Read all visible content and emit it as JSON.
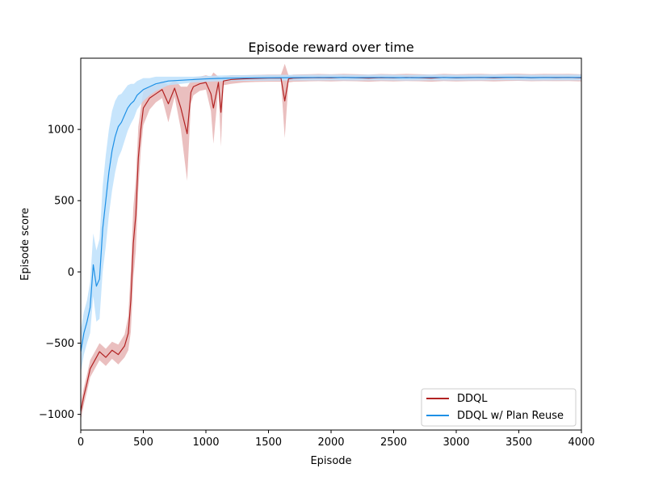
{
  "chart_data": {
    "type": "line",
    "title": "Episode reward over time",
    "xlabel": "Episode",
    "ylabel": "Episode score",
    "xlim": [
      0,
      4000
    ],
    "ylim": [
      -1110,
      1500
    ],
    "xticks": [
      0,
      500,
      1000,
      1500,
      2000,
      2500,
      3000,
      3500,
      4000
    ],
    "yticks": [
      -1000,
      -500,
      0,
      500,
      1000
    ],
    "ytick_labels": [
      "−1000",
      "−500",
      "0",
      "500",
      "1000"
    ],
    "grid": false,
    "legend_position": "bottom-right",
    "series": [
      {
        "name": "DDQL",
        "color": "#b22222",
        "band_color": "#e3aaaa",
        "x": [
          0,
          25,
          50,
          75,
          100,
          150,
          200,
          250,
          300,
          350,
          380,
          400,
          420,
          440,
          460,
          480,
          500,
          550,
          600,
          650,
          700,
          750,
          800,
          850,
          880,
          900,
          950,
          1000,
          1040,
          1060,
          1100,
          1120,
          1140,
          1200,
          1300,
          1400,
          1500,
          1600,
          1630,
          1660,
          1700,
          1800,
          1900,
          2000,
          2100,
          2200,
          2300,
          2400,
          2500,
          2600,
          2700,
          2800,
          2900,
          3000,
          3100,
          3200,
          3300,
          3400,
          3500,
          3600,
          3700,
          3800,
          3900,
          4000
        ],
        "values": [
          -980,
          -870,
          -780,
          -680,
          -640,
          -560,
          -600,
          -550,
          -580,
          -520,
          -430,
          -200,
          200,
          400,
          800,
          1000,
          1150,
          1220,
          1250,
          1280,
          1180,
          1290,
          1150,
          970,
          1260,
          1300,
          1320,
          1330,
          1250,
          1150,
          1330,
          1120,
          1340,
          1350,
          1355,
          1358,
          1360,
          1360,
          1200,
          1355,
          1360,
          1362,
          1364,
          1362,
          1365,
          1363,
          1360,
          1364,
          1362,
          1365,
          1363,
          1360,
          1365,
          1362,
          1364,
          1365,
          1362,
          1365,
          1366,
          1363,
          1365,
          1364,
          1365,
          1362
        ],
        "band": [
          60,
          60,
          60,
          60,
          60,
          60,
          60,
          60,
          70,
          80,
          120,
          220,
          250,
          250,
          220,
          150,
          120,
          80,
          60,
          60,
          130,
          60,
          150,
          330,
          80,
          60,
          50,
          50,
          120,
          250,
          40,
          240,
          30,
          30,
          25,
          25,
          25,
          25,
          260,
          25,
          25,
          25,
          25,
          25,
          25,
          25,
          25,
          25,
          25,
          25,
          25,
          25,
          25,
          25,
          25,
          25,
          25,
          25,
          25,
          25,
          25,
          25,
          25,
          25
        ]
      },
      {
        "name": "DDQL w/ Plan Reuse",
        "color": "#1e90e6",
        "band_color": "#bde0fb",
        "x": [
          0,
          25,
          50,
          75,
          100,
          125,
          150,
          175,
          200,
          225,
          250,
          275,
          300,
          325,
          350,
          375,
          400,
          425,
          450,
          500,
          550,
          600,
          650,
          700,
          800,
          900,
          1000,
          1100,
          1200,
          1400,
          1600,
          1800,
          2000,
          2200,
          2400,
          2600,
          2800,
          3000,
          3200,
          3400,
          3600,
          3800,
          4000
        ],
        "values": [
          -560,
          -430,
          -350,
          -250,
          50,
          -100,
          -50,
          300,
          500,
          700,
          850,
          950,
          1020,
          1050,
          1100,
          1150,
          1180,
          1200,
          1240,
          1280,
          1300,
          1320,
          1330,
          1340,
          1345,
          1350,
          1355,
          1358,
          1360,
          1362,
          1363,
          1364,
          1365,
          1364,
          1365,
          1363,
          1365,
          1364,
          1365,
          1366,
          1364,
          1365,
          1365
        ],
        "band": [
          150,
          150,
          150,
          180,
          220,
          250,
          280,
          300,
          320,
          300,
          280,
          250,
          220,
          200,
          180,
          160,
          140,
          120,
          100,
          80,
          60,
          50,
          40,
          30,
          25,
          20,
          20,
          20,
          20,
          20,
          20,
          20,
          20,
          20,
          20,
          20,
          20,
          20,
          20,
          20,
          20,
          20,
          20
        ]
      }
    ]
  }
}
